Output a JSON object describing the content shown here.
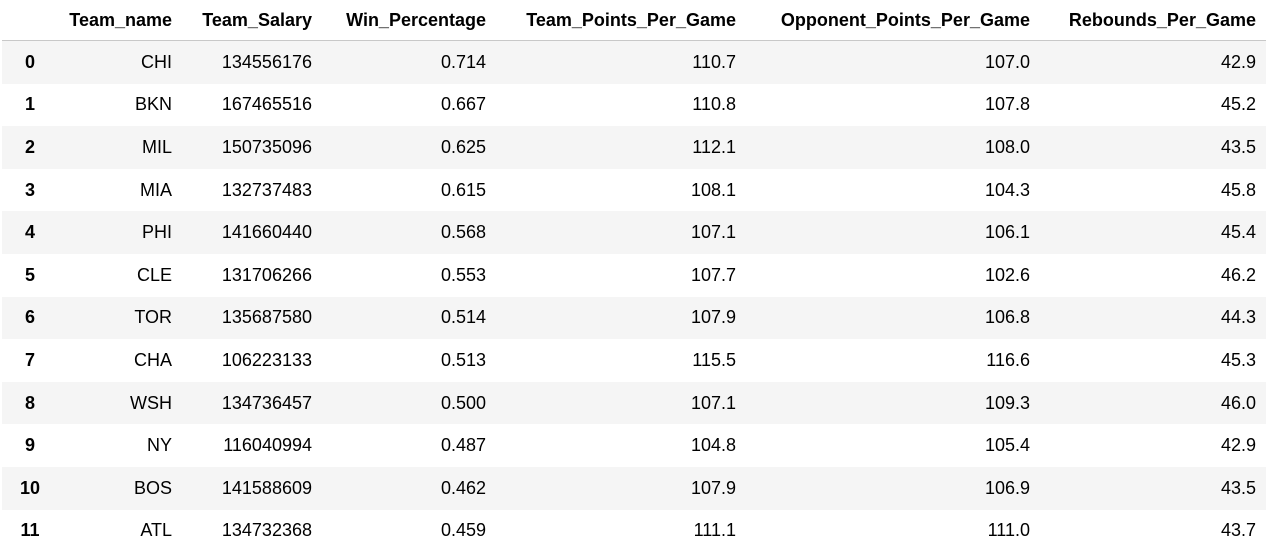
{
  "dataframe": {
    "columns": [
      "Team_name",
      "Team_Salary",
      "Win_Percentage",
      "Team_Points_Per_Game",
      "Opponent_Points_Per_Game",
      "Rebounds_Per_Game"
    ],
    "rows": [
      {
        "index": "0",
        "cells": [
          "CHI",
          "134556176",
          "0.714",
          "110.7",
          "107.0",
          "42.9"
        ]
      },
      {
        "index": "1",
        "cells": [
          "BKN",
          "167465516",
          "0.667",
          "110.8",
          "107.8",
          "45.2"
        ]
      },
      {
        "index": "2",
        "cells": [
          "MIL",
          "150735096",
          "0.625",
          "112.1",
          "108.0",
          "43.5"
        ]
      },
      {
        "index": "3",
        "cells": [
          "MIA",
          "132737483",
          "0.615",
          "108.1",
          "104.3",
          "45.8"
        ]
      },
      {
        "index": "4",
        "cells": [
          "PHI",
          "141660440",
          "0.568",
          "107.1",
          "106.1",
          "45.4"
        ]
      },
      {
        "index": "5",
        "cells": [
          "CLE",
          "131706266",
          "0.553",
          "107.7",
          "102.6",
          "46.2"
        ]
      },
      {
        "index": "6",
        "cells": [
          "TOR",
          "135687580",
          "0.514",
          "107.9",
          "106.8",
          "44.3"
        ]
      },
      {
        "index": "7",
        "cells": [
          "CHA",
          "106223133",
          "0.513",
          "115.5",
          "116.6",
          "45.3"
        ]
      },
      {
        "index": "8",
        "cells": [
          "WSH",
          "134736457",
          "0.500",
          "107.1",
          "109.3",
          "46.0"
        ]
      },
      {
        "index": "9",
        "cells": [
          "NY",
          "116040994",
          "0.487",
          "104.8",
          "105.4",
          "42.9"
        ]
      },
      {
        "index": "10",
        "cells": [
          "BOS",
          "141588609",
          "0.462",
          "107.9",
          "106.9",
          "43.5"
        ]
      },
      {
        "index": "11",
        "cells": [
          "ATL",
          "134732368",
          "0.459",
          "111.1",
          "111.0",
          "43.7"
        ]
      }
    ]
  }
}
